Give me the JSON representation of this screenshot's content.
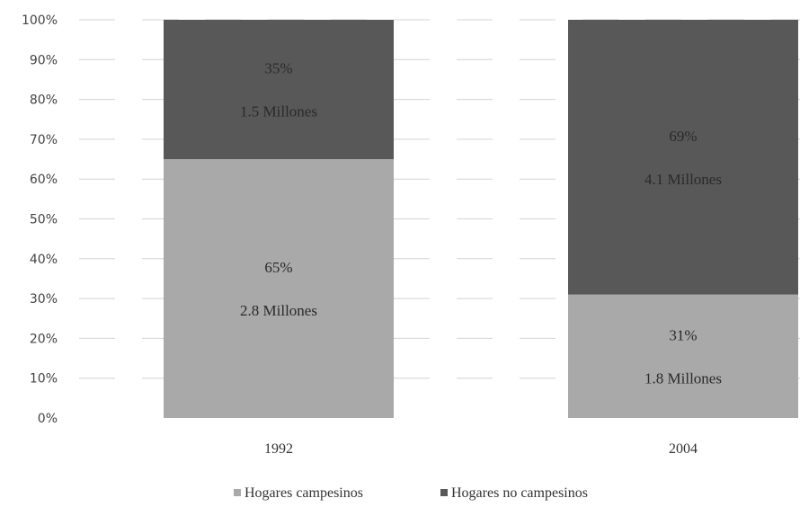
{
  "chart_data": {
    "type": "bar",
    "stacked": true,
    "percent": true,
    "categories": [
      "1992",
      "2004"
    ],
    "series": [
      {
        "name": "Hogares campesinos",
        "values": [
          65,
          31
        ],
        "labels": [
          "65%",
          "31%"
        ],
        "sublabels": [
          "2.8 Millones",
          "1.8 Millones"
        ],
        "color": "#a9a9a9"
      },
      {
        "name": "Hogares no campesinos",
        "values": [
          35,
          69
        ],
        "labels": [
          "35%",
          "69%"
        ],
        "sublabels": [
          "1.5 Millones",
          "4.1 Millones"
        ],
        "color": "#585858"
      }
    ],
    "yticks": [
      "0%",
      "10%",
      "20%",
      "30%",
      "40%",
      "50%",
      "60%",
      "70%",
      "80%",
      "90%",
      "100%"
    ],
    "ylim": [
      0,
      100
    ],
    "grid": true,
    "legend_position": "bottom"
  }
}
